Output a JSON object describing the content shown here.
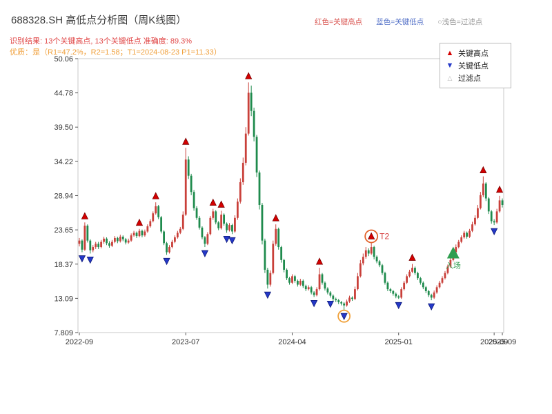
{
  "header": {
    "title": "688328.SH 高低点分析图（周K线图）",
    "top_legend": [
      {
        "label": "红色=关键高点",
        "color": "#d9534f"
      },
      {
        "label": "蓝色=关键低点",
        "color": "#5572c8"
      },
      {
        "label": "○浅色=过滤点",
        "color": "#999999"
      }
    ],
    "result_line": "识别结果: 13个关键高点, 13个关键低点  准确度: 89.3%",
    "quality_line": "优质：是（R1=47.2%，R2=1.58；T1=2024-08-23 P1=11.33）"
  },
  "legend_box": {
    "items": [
      {
        "icon": "up-triangle",
        "label": "关键高点",
        "color": "#d40000"
      },
      {
        "icon": "down-triangle",
        "label": "关键低点",
        "color": "#2438c8"
      },
      {
        "icon": "small-up-triangle",
        "label": "过滤点",
        "color": "#b5b5b5"
      }
    ]
  },
  "chart_data": {
    "type": "candlestick",
    "title": "688328.SH 高低点分析图（周K线图）",
    "frequency": "weekly",
    "up_color": "#c9403a",
    "down_color": "#1f8b4d",
    "key_high_color": "#d40000",
    "key_low_color": "#2438c8",
    "y_range": [
      7.809,
      50.06
    ],
    "y_ticks": [
      {
        "v": 50.06,
        "label": "50.06"
      },
      {
        "v": 44.78,
        "label": "44.78"
      },
      {
        "v": 39.5,
        "label": "39.50"
      },
      {
        "v": 34.22,
        "label": "34.22"
      },
      {
        "v": 28.94,
        "label": "28.94"
      },
      {
        "v": 23.65,
        "label": "23.65"
      },
      {
        "v": 18.37,
        "label": "18.37"
      },
      {
        "v": 13.09,
        "label": "13.09"
      },
      {
        "v": 7.809,
        "label": "7.809"
      }
    ],
    "x_ticks": [
      {
        "week": 0,
        "label": "2022-09"
      },
      {
        "week": 39,
        "label": "2023-07"
      },
      {
        "week": 78,
        "label": "2024-04"
      },
      {
        "week": 117,
        "label": "2025-01"
      },
      {
        "week": 152,
        "label": "2025-09"
      },
      {
        "week": 155,
        "label": "2025-09"
      }
    ],
    "metrics": {
      "key_highs_count": 13,
      "key_lows_count": 13,
      "accuracy_pct": 89.3,
      "r1_pct": 47.2,
      "r2": 1.58,
      "t1_date": "2024-08-23",
      "p1": 11.33
    },
    "candles": [
      [
        21.5,
        22.4,
        21.1,
        22.0
      ],
      [
        22.0,
        22.2,
        20.2,
        20.6
      ],
      [
        20.6,
        24.8,
        20.4,
        24.3
      ],
      [
        24.3,
        24.5,
        21.7,
        22.0
      ],
      [
        22.0,
        22.2,
        20.0,
        20.5
      ],
      [
        20.5,
        21.3,
        20.2,
        21.0
      ],
      [
        21.0,
        21.8,
        20.7,
        21.5
      ],
      [
        21.5,
        21.8,
        20.7,
        21.0
      ],
      [
        21.0,
        22.1,
        20.8,
        21.8
      ],
      [
        21.8,
        22.6,
        21.5,
        22.3
      ],
      [
        22.3,
        22.5,
        21.3,
        21.6
      ],
      [
        21.6,
        21.9,
        20.9,
        21.2
      ],
      [
        21.2,
        22.1,
        21.0,
        21.8
      ],
      [
        21.8,
        22.7,
        21.6,
        22.4
      ],
      [
        22.4,
        22.6,
        21.6,
        21.9
      ],
      [
        21.9,
        22.9,
        21.7,
        22.6
      ],
      [
        22.6,
        22.8,
        21.9,
        22.2
      ],
      [
        22.2,
        22.4,
        21.4,
        21.7
      ],
      [
        21.7,
        22.3,
        21.5,
        22.0
      ],
      [
        22.0,
        23.1,
        21.8,
        22.8
      ],
      [
        22.8,
        23.5,
        22.6,
        23.2
      ],
      [
        23.2,
        23.4,
        22.4,
        22.7
      ],
      [
        22.7,
        23.8,
        22.5,
        23.5
      ],
      [
        23.5,
        23.7,
        22.5,
        22.8
      ],
      [
        22.8,
        23.7,
        22.6,
        23.4
      ],
      [
        23.4,
        24.5,
        23.2,
        24.2
      ],
      [
        24.2,
        25.3,
        24.0,
        25.0
      ],
      [
        25.0,
        26.5,
        24.8,
        26.2
      ],
      [
        26.2,
        27.9,
        26.0,
        27.3
      ],
      [
        27.3,
        27.5,
        25.3,
        25.6
      ],
      [
        25.6,
        25.8,
        23.1,
        23.4
      ],
      [
        23.4,
        23.6,
        21.3,
        21.6
      ],
      [
        21.6,
        21.8,
        19.8,
        20.2
      ],
      [
        20.2,
        21.3,
        20.0,
        21.0
      ],
      [
        21.0,
        22.1,
        20.8,
        21.8
      ],
      [
        21.8,
        22.8,
        21.6,
        22.5
      ],
      [
        22.5,
        23.5,
        22.3,
        23.2
      ],
      [
        23.2,
        24.1,
        23.0,
        23.8
      ],
      [
        23.8,
        26.5,
        23.6,
        26.0
      ],
      [
        26.0,
        36.3,
        25.8,
        34.5
      ],
      [
        34.5,
        35.0,
        31.5,
        32.0
      ],
      [
        32.0,
        32.3,
        29.0,
        29.5
      ],
      [
        29.5,
        29.8,
        26.6,
        27.0
      ],
      [
        27.0,
        27.3,
        25.2,
        25.5
      ],
      [
        25.5,
        25.8,
        23.7,
        24.0
      ],
      [
        24.0,
        24.2,
        22.2,
        22.5
      ],
      [
        22.5,
        22.7,
        21.0,
        21.5
      ],
      [
        21.5,
        23.3,
        21.3,
        23.0
      ],
      [
        23.0,
        25.8,
        22.8,
        25.5
      ],
      [
        25.5,
        26.9,
        25.2,
        26.5
      ],
      [
        26.5,
        26.7,
        24.5,
        24.8
      ],
      [
        24.8,
        25.0,
        23.6,
        23.9
      ],
      [
        23.9,
        26.6,
        23.7,
        26.0
      ],
      [
        26.0,
        26.2,
        24.3,
        24.6
      ],
      [
        24.6,
        24.8,
        23.2,
        23.6
      ],
      [
        23.6,
        24.7,
        23.4,
        24.4
      ],
      [
        24.4,
        24.6,
        23.0,
        23.4
      ],
      [
        23.4,
        25.9,
        23.2,
        25.5
      ],
      [
        25.5,
        28.5,
        25.2,
        28.0
      ],
      [
        28.0,
        31.6,
        27.7,
        31.0
      ],
      [
        31.0,
        34.8,
        30.6,
        34.0
      ],
      [
        34.0,
        39.5,
        33.6,
        38.5
      ],
      [
        38.5,
        46.4,
        38.2,
        44.8
      ],
      [
        44.8,
        45.9,
        41.2,
        42.0
      ],
      [
        42.0,
        42.5,
        37.3,
        38.0
      ],
      [
        38.0,
        38.3,
        31.8,
        32.5
      ],
      [
        32.5,
        32.8,
        26.8,
        27.5
      ],
      [
        27.5,
        27.8,
        21.4,
        22.0
      ],
      [
        22.0,
        22.3,
        17.0,
        17.5
      ],
      [
        17.5,
        17.8,
        14.6,
        15.2
      ],
      [
        15.2,
        17.4,
        14.9,
        17.0
      ],
      [
        17.0,
        22.0,
        16.8,
        21.5
      ],
      [
        21.5,
        24.5,
        21.2,
        23.8
      ],
      [
        23.8,
        24.0,
        20.6,
        21.0
      ],
      [
        21.0,
        21.2,
        18.6,
        19.0
      ],
      [
        19.0,
        19.2,
        17.1,
        17.5
      ],
      [
        17.5,
        17.7,
        15.9,
        16.2
      ],
      [
        16.2,
        16.4,
        15.2,
        15.5
      ],
      [
        15.5,
        16.8,
        15.3,
        16.5
      ],
      [
        16.5,
        16.7,
        15.5,
        15.8
      ],
      [
        15.8,
        16.0,
        14.9,
        15.2
      ],
      [
        15.2,
        16.1,
        15.0,
        15.8
      ],
      [
        15.8,
        16.0,
        14.7,
        15.0
      ],
      [
        15.0,
        15.2,
        14.2,
        14.5
      ],
      [
        14.5,
        15.1,
        14.3,
        14.8
      ],
      [
        14.8,
        15.0,
        13.7,
        14.0
      ],
      [
        14.0,
        14.2,
        13.3,
        13.6
      ],
      [
        13.6,
        14.8,
        13.4,
        14.5
      ],
      [
        14.5,
        17.8,
        14.3,
        16.8
      ],
      [
        16.8,
        17.0,
        15.2,
        15.5
      ],
      [
        15.5,
        15.7,
        14.3,
        14.6
      ],
      [
        14.6,
        14.8,
        13.7,
        14.0
      ],
      [
        14.0,
        14.2,
        13.2,
        13.5
      ],
      [
        13.5,
        13.7,
        12.7,
        13.0
      ],
      [
        13.0,
        13.2,
        12.5,
        12.8
      ],
      [
        12.8,
        13.0,
        12.2,
        12.5
      ],
      [
        12.5,
        12.7,
        12.0,
        12.3
      ],
      [
        12.3,
        12.5,
        11.3,
        12.0
      ],
      [
        12.0,
        12.9,
        11.8,
        12.6
      ],
      [
        12.6,
        13.5,
        12.4,
        13.2
      ],
      [
        13.2,
        13.4,
        12.7,
        13.0
      ],
      [
        13.0,
        14.9,
        12.8,
        14.5
      ],
      [
        14.5,
        17.0,
        14.3,
        16.5
      ],
      [
        16.5,
        19.0,
        16.3,
        18.5
      ],
      [
        18.5,
        20.0,
        18.2,
        19.5
      ],
      [
        19.5,
        21.0,
        19.2,
        20.5
      ],
      [
        20.5,
        20.8,
        19.6,
        20.0
      ],
      [
        20.0,
        21.7,
        19.8,
        21.0
      ],
      [
        21.0,
        21.2,
        19.1,
        19.5
      ],
      [
        19.5,
        19.7,
        18.5,
        18.8
      ],
      [
        18.8,
        19.0,
        17.9,
        18.2
      ],
      [
        18.2,
        18.4,
        16.7,
        17.0
      ],
      [
        17.0,
        17.2,
        15.2,
        15.5
      ],
      [
        15.5,
        15.7,
        14.2,
        14.5
      ],
      [
        14.5,
        14.7,
        13.9,
        14.2
      ],
      [
        14.2,
        14.4,
        13.5,
        13.8
      ],
      [
        13.8,
        14.0,
        13.1,
        13.4
      ],
      [
        13.4,
        13.6,
        13.0,
        13.2
      ],
      [
        13.2,
        14.8,
        13.0,
        14.5
      ],
      [
        14.5,
        15.8,
        14.3,
        15.5
      ],
      [
        15.5,
        16.8,
        15.3,
        16.5
      ],
      [
        16.5,
        17.5,
        16.3,
        17.2
      ],
      [
        17.2,
        18.4,
        17.0,
        17.8
      ],
      [
        17.8,
        18.0,
        16.7,
        17.0
      ],
      [
        17.0,
        17.2,
        15.9,
        16.2
      ],
      [
        16.2,
        16.4,
        15.2,
        15.5
      ],
      [
        15.5,
        15.7,
        14.5,
        14.8
      ],
      [
        14.8,
        15.0,
        13.9,
        14.2
      ],
      [
        14.2,
        14.4,
        13.3,
        13.6
      ],
      [
        13.6,
        13.8,
        12.8,
        13.2
      ],
      [
        13.2,
        14.3,
        13.0,
        14.0
      ],
      [
        14.0,
        15.1,
        13.8,
        14.8
      ],
      [
        14.8,
        15.8,
        14.6,
        15.5
      ],
      [
        15.5,
        16.5,
        15.3,
        16.2
      ],
      [
        16.2,
        17.3,
        16.0,
        17.0
      ],
      [
        17.0,
        18.3,
        16.8,
        18.0
      ],
      [
        18.0,
        19.3,
        17.8,
        19.0
      ],
      [
        19.0,
        20.6,
        18.8,
        20.2
      ],
      [
        20.2,
        21.4,
        20.0,
        21.0
      ],
      [
        21.0,
        22.1,
        20.8,
        21.8
      ],
      [
        21.8,
        22.8,
        21.6,
        22.5
      ],
      [
        22.5,
        23.5,
        22.3,
        23.2
      ],
      [
        23.2,
        23.4,
        22.3,
        22.6
      ],
      [
        22.6,
        23.8,
        22.4,
        23.5
      ],
      [
        23.5,
        24.9,
        23.3,
        24.5
      ],
      [
        24.5,
        25.9,
        24.3,
        25.5
      ],
      [
        25.5,
        27.5,
        25.3,
        27.0
      ],
      [
        27.0,
        29.5,
        26.8,
        29.0
      ],
      [
        29.0,
        31.9,
        28.7,
        30.8
      ],
      [
        30.8,
        31.0,
        28.1,
        28.5
      ],
      [
        28.5,
        28.7,
        26.1,
        26.5
      ],
      [
        26.5,
        26.7,
        24.6,
        25.0
      ],
      [
        25.0,
        25.3,
        24.4,
        24.8
      ],
      [
        24.8,
        26.9,
        24.6,
        26.5
      ],
      [
        26.5,
        28.9,
        26.3,
        28.2
      ],
      [
        28.2,
        28.5,
        27.1,
        27.5
      ]
    ],
    "key_highs": [
      2,
      22,
      28,
      39,
      49,
      52,
      62,
      72,
      88,
      107,
      122,
      148,
      154
    ],
    "key_lows": [
      1,
      4,
      32,
      46,
      54,
      56,
      69,
      86,
      92,
      97,
      117,
      129,
      152
    ],
    "annotations": [
      {
        "type": "circle-high",
        "week": 107,
        "label": "T2",
        "circle_color": "#e2622a"
      },
      {
        "type": "circle-low",
        "week": 97,
        "label": "",
        "circle_color": "#f0a23c"
      },
      {
        "type": "entry",
        "week": 137,
        "price": 20.0,
        "label": "入场",
        "color": "#2f9e4f"
      }
    ]
  }
}
